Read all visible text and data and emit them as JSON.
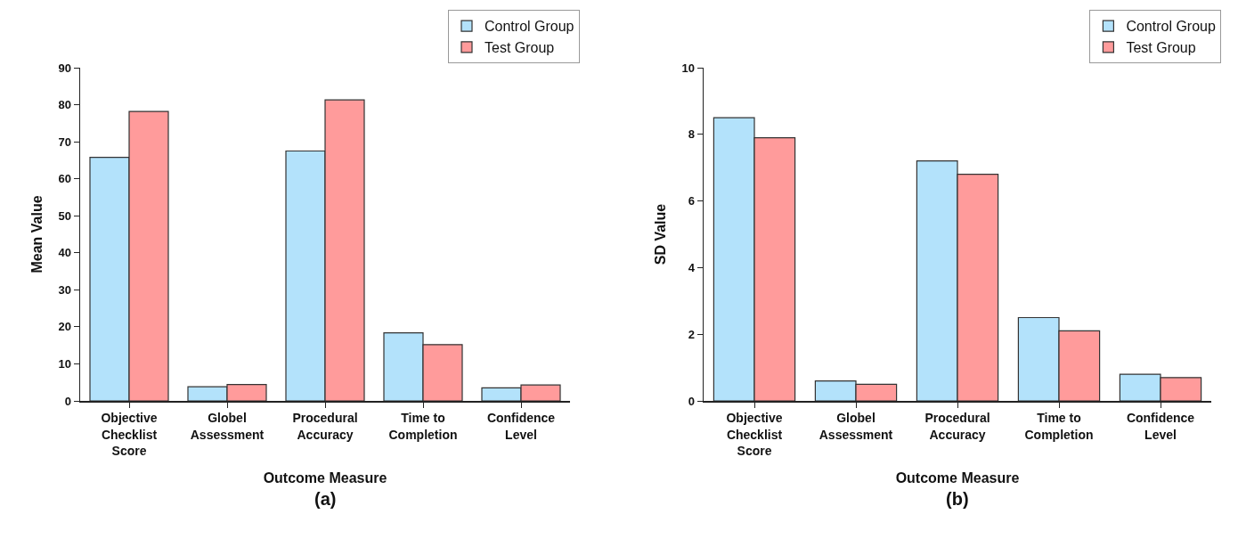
{
  "chart_data": [
    {
      "type": "bar",
      "xlabel": "Outcome Measure",
      "ylabel": "Mean Value",
      "categories": [
        "Objective\nChecklist\nScore",
        "Globel\nAssessment",
        "Procedural\nAccuracy",
        "Time to\nCompletion",
        "Confidence\nLevel"
      ],
      "series": [
        {
          "name": "Control Group",
          "color": "#b3e2fb",
          "values": [
            65.8,
            3.8,
            67.5,
            18.4,
            3.5
          ]
        },
        {
          "name": "Test Group",
          "color": "#ff9b9b",
          "values": [
            78.2,
            4.4,
            81.3,
            15.2,
            4.3
          ]
        }
      ],
      "ylim": [
        0,
        90
      ],
      "yticks": [
        0,
        10,
        20,
        30,
        40,
        50,
        60,
        70,
        80,
        90
      ],
      "grid": false,
      "legend": "top right",
      "annotations": [
        "(a)"
      ]
    },
    {
      "type": "bar",
      "xlabel": "Outcome Measure",
      "ylabel": "SD Value",
      "categories": [
        "Objective\nChecklist\nScore",
        "Globel\nAssessment",
        "Procedural\nAccuracy",
        "Time to\nCompletion",
        "Confidence\nLevel"
      ],
      "series": [
        {
          "name": "Control Group",
          "color": "#b3e2fb",
          "values": [
            8.5,
            0.6,
            7.2,
            2.5,
            0.8
          ]
        },
        {
          "name": "Test Group",
          "color": "#ff9b9b",
          "values": [
            7.9,
            0.5,
            6.8,
            2.1,
            0.7
          ]
        }
      ],
      "ylim": [
        0,
        10
      ],
      "yticks": [
        0,
        2,
        4,
        6,
        8,
        10
      ],
      "grid": false,
      "legend": "top right",
      "annotations": [
        "(b)"
      ]
    }
  ]
}
